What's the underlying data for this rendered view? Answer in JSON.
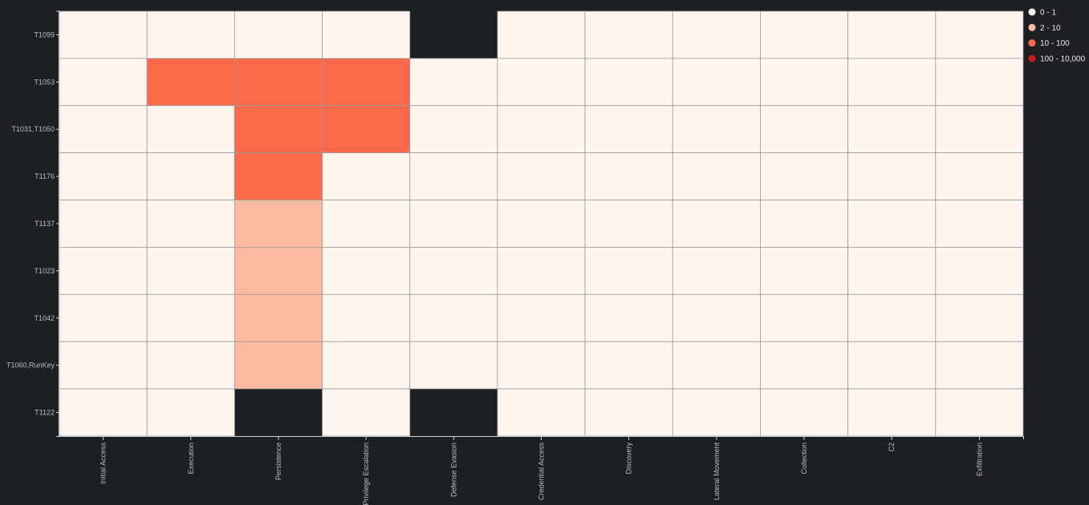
{
  "chart_data": {
    "type": "heatmap",
    "columns": [
      "Initial Access",
      "Execution",
      "Persistence",
      "Privilege Escalation",
      "Defense Evasion",
      "Credential Access",
      "Discovery",
      "Lateral Movement",
      "Collection",
      "C2",
      "Exfiltration"
    ],
    "rows": [
      "T1099",
      "T1053",
      "T1031,T1050",
      "T1176",
      "T1137",
      "T1023",
      "T1042",
      "T1060,RunKey",
      "T1122"
    ],
    "cell_bins": [
      [
        0,
        0,
        0,
        0,
        -1,
        0,
        0,
        0,
        0,
        0,
        0
      ],
      [
        0,
        2,
        2,
        2,
        0,
        0,
        0,
        0,
        0,
        0,
        0
      ],
      [
        0,
        0,
        2,
        2,
        0,
        0,
        0,
        0,
        0,
        0,
        0
      ],
      [
        0,
        0,
        2,
        0,
        0,
        0,
        0,
        0,
        0,
        0,
        0
      ],
      [
        0,
        0,
        1,
        0,
        0,
        0,
        0,
        0,
        0,
        0,
        0
      ],
      [
        0,
        0,
        1,
        0,
        0,
        0,
        0,
        0,
        0,
        0,
        0
      ],
      [
        0,
        0,
        1,
        0,
        0,
        0,
        0,
        0,
        0,
        0,
        0
      ],
      [
        0,
        0,
        1,
        0,
        0,
        0,
        0,
        0,
        0,
        0,
        0
      ],
      [
        0,
        0,
        -1,
        0,
        -1,
        0,
        0,
        0,
        0,
        0,
        0
      ]
    ],
    "bin_note": "-1 = no cell drawn (background)",
    "legend": [
      {
        "label": "0 - 1",
        "color": "#fff5ef"
      },
      {
        "label": "2 - 10",
        "color": "#fcbba1"
      },
      {
        "label": "10 - 100",
        "color": "#fc6a49"
      },
      {
        "label": "100 - 10,000",
        "color": "#cb181d"
      }
    ],
    "legend_position": "top-right",
    "grid": true
  },
  "colors": {
    "background": "#1e1f23",
    "gridline": "#9a9a9a",
    "axis": "#cfd2d8"
  }
}
